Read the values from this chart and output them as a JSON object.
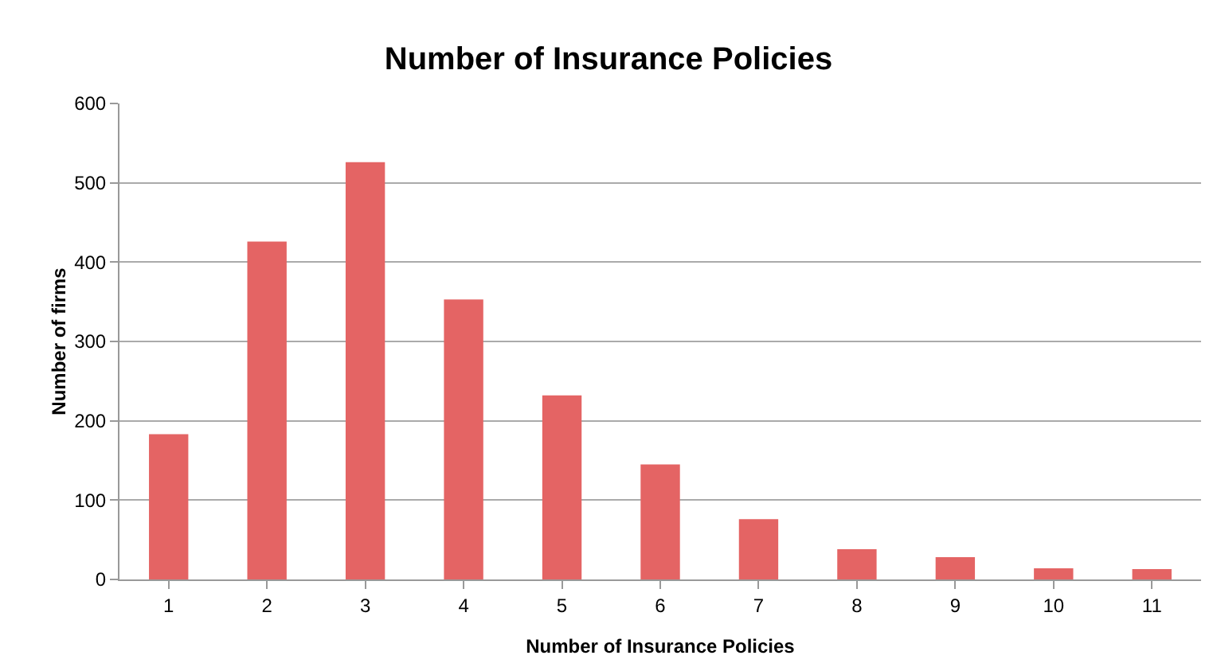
{
  "chart_data": {
    "type": "bar",
    "title": "Number of Insurance Policies",
    "xlabel": "Number of Insurance Policies",
    "ylabel": "Number of firms",
    "categories": [
      "1",
      "2",
      "3",
      "4",
      "5",
      "6",
      "7",
      "8",
      "9",
      "10",
      "11"
    ],
    "values": [
      183,
      426,
      526,
      353,
      232,
      145,
      76,
      38,
      28,
      14,
      13
    ],
    "color": "#e46464",
    "ylim": [
      0,
      600
    ],
    "yticks": [
      0,
      100,
      200,
      300,
      400,
      500,
      600
    ],
    "grid": "y",
    "legend": false
  }
}
